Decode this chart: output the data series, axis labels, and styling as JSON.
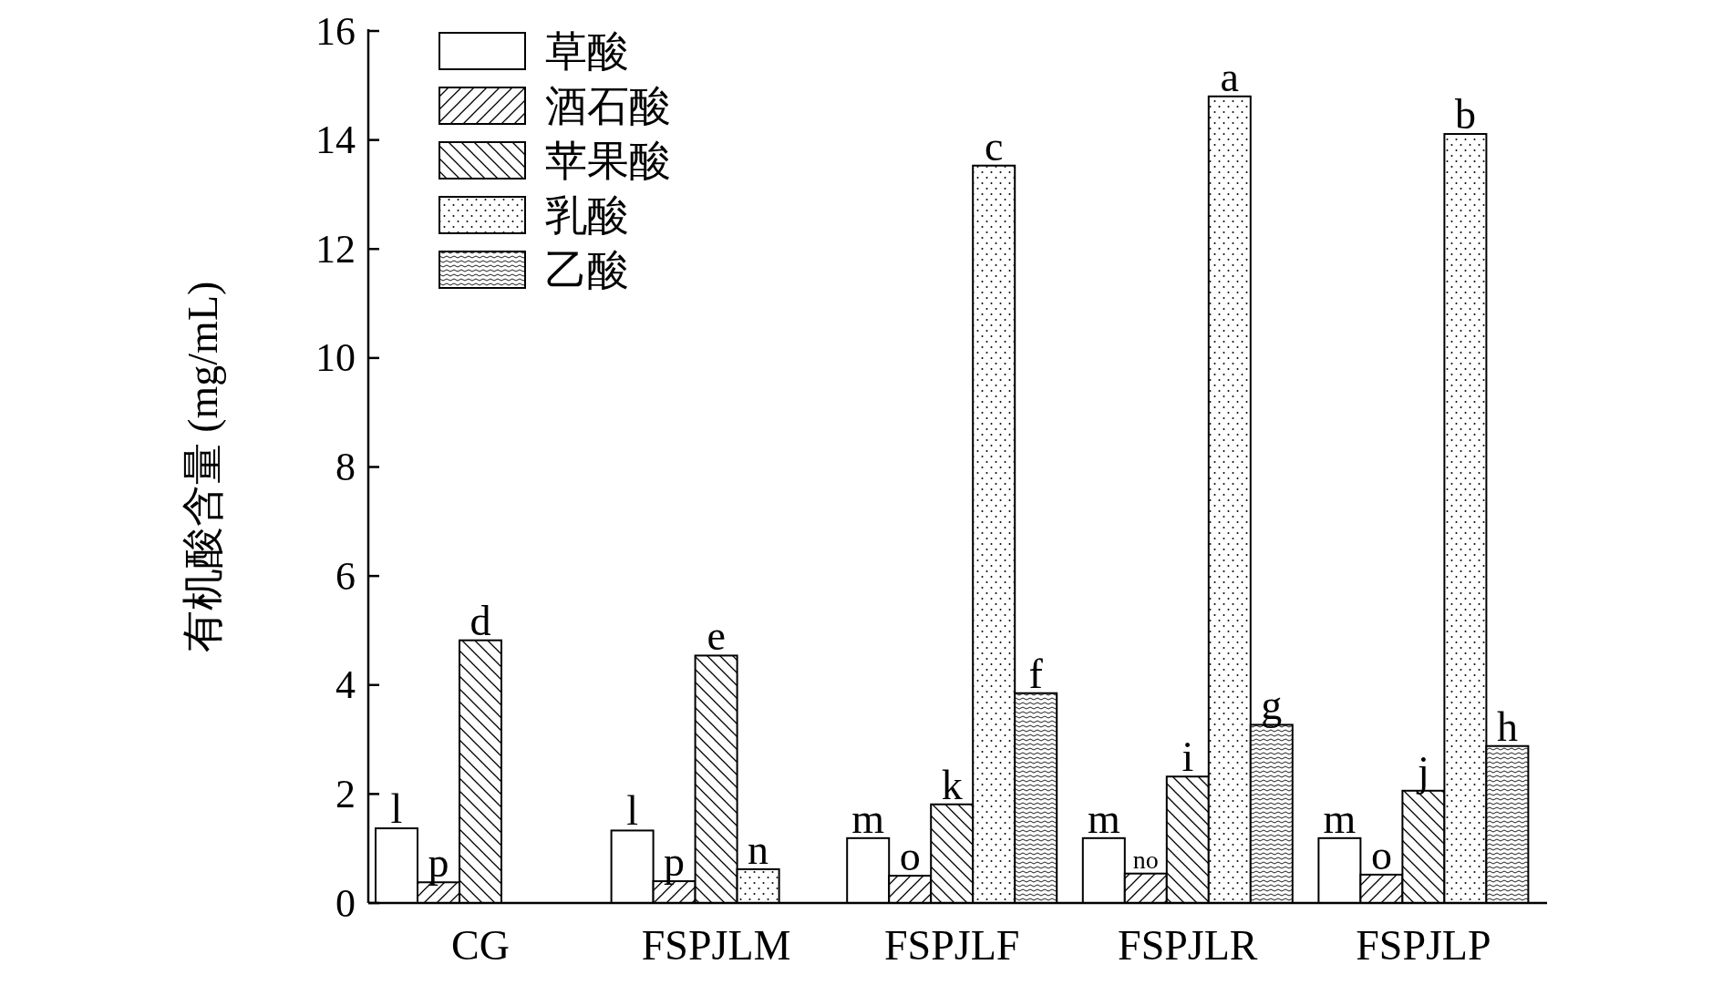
{
  "chart_data": {
    "type": "bar",
    "ylabel": "有机酸含量 (mg/mL)",
    "categories": [
      "CG",
      "FSPJLM",
      "FSPJLF",
      "FSPJLR",
      "FSPJLP"
    ],
    "ylim": [
      0,
      16
    ],
    "yticks": [
      0,
      2,
      4,
      6,
      8,
      10,
      12,
      14,
      16
    ],
    "grid": false,
    "legend": "top left",
    "series": [
      {
        "name": "草酸",
        "color": "#ffffff",
        "values": [
          1.37,
          1.33,
          1.19,
          1.19,
          1.19
        ],
        "value_labels": [
          "l",
          "l",
          "m",
          "m",
          "m"
        ]
      },
      {
        "name": "酒石酸",
        "color": "#000000",
        "values": [
          0.38,
          0.4,
          0.5,
          0.54,
          0.52
        ],
        "value_labels": [
          "p",
          "p",
          "o",
          "no",
          "o"
        ]
      },
      {
        "name": "苹果酸",
        "color": "#000000",
        "values": [
          4.82,
          4.54,
          1.81,
          2.32,
          2.06
        ],
        "value_labels": [
          "d",
          "e",
          "k",
          "i",
          "j"
        ]
      },
      {
        "name": "乳酸",
        "color": "#000000",
        "values": [
          null,
          0.62,
          13.53,
          14.8,
          14.11
        ],
        "value_labels": [
          null,
          "n",
          "c",
          "a",
          "b"
        ]
      },
      {
        "name": "乙酸",
        "color": "#000000",
        "values": [
          null,
          null,
          3.85,
          3.27,
          2.88
        ],
        "value_labels": [
          null,
          null,
          "f",
          "g",
          "h"
        ]
      }
    ]
  }
}
